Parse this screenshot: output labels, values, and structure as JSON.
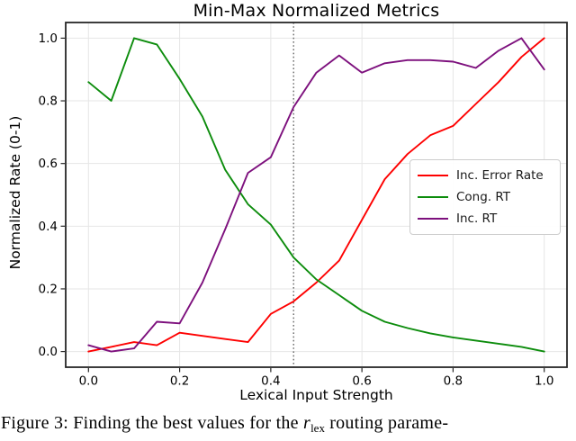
{
  "figure": {
    "title": "Min-Max Normalized Metrics",
    "xlabel": "Lexical Input Strength",
    "ylabel": "Normalized Rate (0-1)"
  },
  "caption": {
    "prefix": "Figure 3: Finding the best values for the ",
    "variable": "r",
    "variable_sub": "lex",
    "suffix": " routing parame-"
  },
  "chart_data": {
    "type": "line",
    "title": "Min-Max Normalized Metrics",
    "xlabel": "Lexical Input Strength",
    "ylabel": "Normalized Rate (0-1)",
    "x": [
      0.0,
      0.05,
      0.1,
      0.15,
      0.2,
      0.25,
      0.3,
      0.35,
      0.4,
      0.45,
      0.5,
      0.55,
      0.6,
      0.65,
      0.7,
      0.75,
      0.8,
      0.85,
      0.9,
      0.95,
      1.0
    ],
    "series": [
      {
        "name": "Inc. Error Rate",
        "color": "#fe0000",
        "values": [
          0.0,
          0.015,
          0.03,
          0.02,
          0.06,
          0.05,
          0.04,
          0.03,
          0.12,
          0.16,
          0.22,
          0.29,
          0.42,
          0.55,
          0.63,
          0.69,
          0.72,
          0.79,
          0.86,
          0.94,
          1.0
        ]
      },
      {
        "name": "Cong. RT",
        "color": "#0c8c0c",
        "values": [
          0.86,
          0.8,
          1.0,
          0.98,
          0.87,
          0.75,
          0.58,
          0.47,
          0.405,
          0.3,
          0.23,
          0.18,
          0.13,
          0.095,
          0.075,
          0.058,
          0.045,
          0.035,
          0.025,
          0.015,
          0.0
        ]
      },
      {
        "name": "Inc. RT",
        "color": "#7d107d",
        "values": [
          0.02,
          0.0,
          0.01,
          0.095,
          0.09,
          0.22,
          0.39,
          0.57,
          0.62,
          0.78,
          0.89,
          0.945,
          0.89,
          0.92,
          0.93,
          0.93,
          0.925,
          0.905,
          0.96,
          1.0,
          0.9
        ]
      }
    ],
    "xticks": [
      "0.0",
      "0.2",
      "0.4",
      "0.6",
      "0.8",
      "1.0"
    ],
    "yticks": [
      "0.0",
      "0.2",
      "0.4",
      "0.6",
      "0.8",
      "1.0"
    ],
    "xlim": [
      -0.05,
      1.05
    ],
    "ylim": [
      -0.05,
      1.05
    ],
    "grid": true,
    "legend_position": "center-right",
    "vline": {
      "x": 0.45,
      "style": "dotted",
      "color": "#4d4d4d"
    }
  }
}
